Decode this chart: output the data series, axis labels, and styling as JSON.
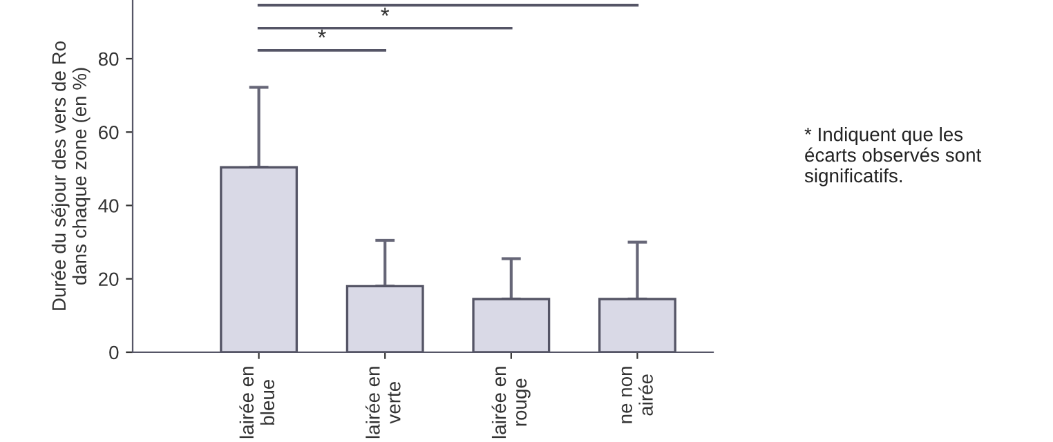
{
  "chart_data": {
    "type": "bar",
    "ylabel": "Durée du séjour des vers de Ro\ndans chaque zone (en %)",
    "categories": [
      "lairée en\nbleue",
      "lairée en\nverte",
      "lairée en\nrouge",
      "ne non\nairée"
    ],
    "values": [
      50.4,
      18,
      14.5,
      14.5
    ],
    "errors": [
      [
        50.4,
        72.2
      ],
      [
        18,
        30.5
      ],
      [
        14.5,
        25.5
      ],
      [
        14.5,
        30
      ]
    ],
    "color": "#d9d9e6",
    "ylim": [
      0,
      96
    ],
    "yticks": [
      0,
      20,
      40,
      60,
      80
    ],
    "grid": false,
    "annotations": [
      "*",
      "*",
      "* Indiquent que les\nécarts observés sont\nsignificatifs."
    ]
  }
}
